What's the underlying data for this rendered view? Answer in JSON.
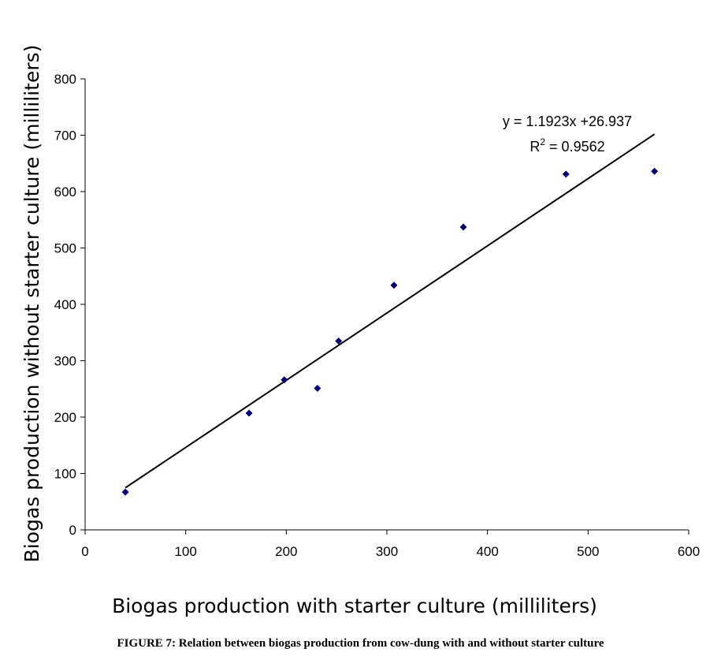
{
  "chart_data": {
    "type": "scatter",
    "xlabel": "Biogas production with starter culture (milliliters)",
    "ylabel": "Biogas  production without starter culture (milliliters)",
    "xlim": [
      0,
      600
    ],
    "ylim": [
      0,
      800
    ],
    "xticks": [
      "0",
      "100",
      "200",
      "300",
      "400",
      "500",
      "600"
    ],
    "yticks": [
      "0",
      "100",
      "200",
      "300",
      "400",
      "500",
      "600",
      "700",
      "800"
    ],
    "grid": false,
    "legend": "none",
    "marker_color": "#000080",
    "points": [
      {
        "x": 40,
        "y": 67
      },
      {
        "x": 163,
        "y": 207
      },
      {
        "x": 198,
        "y": 266
      },
      {
        "x": 231,
        "y": 251
      },
      {
        "x": 252,
        "y": 335
      },
      {
        "x": 307,
        "y": 434
      },
      {
        "x": 376,
        "y": 537
      },
      {
        "x": 478,
        "y": 631
      },
      {
        "x": 566,
        "y": 636
      }
    ],
    "trendline": {
      "slope": 1.1923,
      "intercept": 26.937,
      "x_range": [
        40,
        566
      ],
      "equation_label": "y = 1.1923x +26.937",
      "r2_prefix": "R",
      "r2_sup": "2",
      "r2_value": " = 0.9562"
    }
  },
  "caption": "FIGURE 7:  Relation between biogas production from cow-dung with and without starter culture"
}
